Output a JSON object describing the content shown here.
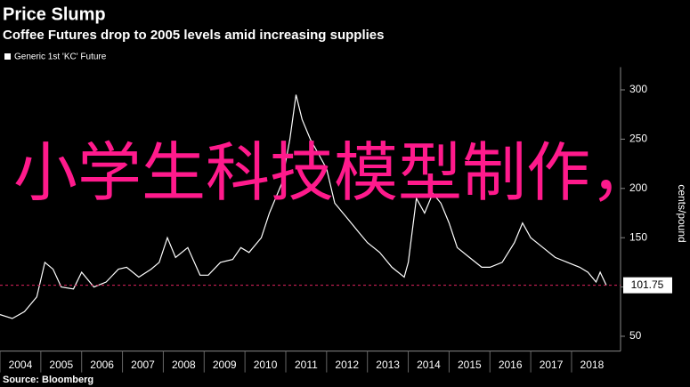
{
  "title": "Price Slump",
  "subtitle": "Coffee Futures drop to 2005 levels amid increasing supplies",
  "source": "Source: Bloomberg",
  "overlay_text": "小学生科技模型制作，",
  "chart_data": {
    "type": "line",
    "y_label": "cents/pound",
    "x": [
      2004.0,
      2004.3,
      2004.6,
      2004.9,
      2005.1,
      2005.3,
      2005.5,
      2005.8,
      2006.0,
      2006.3,
      2006.6,
      2006.9,
      2007.1,
      2007.4,
      2007.7,
      2007.9,
      2008.1,
      2008.3,
      2008.6,
      2008.9,
      2009.1,
      2009.4,
      2009.7,
      2009.9,
      2010.1,
      2010.4,
      2010.6,
      2010.9,
      2011.1,
      2011.25,
      2011.4,
      2011.6,
      2011.8,
      2012.0,
      2012.2,
      2012.5,
      2012.8,
      2013.0,
      2013.3,
      2013.6,
      2013.9,
      2014.0,
      2014.2,
      2014.4,
      2014.6,
      2014.8,
      2015.0,
      2015.2,
      2015.5,
      2015.8,
      2016.0,
      2016.3,
      2016.6,
      2016.8,
      2017.0,
      2017.3,
      2017.6,
      2017.9,
      2018.2,
      2018.4,
      2018.6,
      2018.7,
      2018.85
    ],
    "series": [
      {
        "name": "Generic 1st 'KC' Future",
        "color": "#ffffff",
        "values": [
          72,
          68,
          75,
          90,
          125,
          118,
          100,
          98,
          115,
          100,
          105,
          118,
          120,
          110,
          118,
          125,
          150,
          130,
          140,
          112,
          112,
          125,
          128,
          140,
          135,
          150,
          175,
          205,
          250,
          295,
          270,
          250,
          235,
          220,
          185,
          170,
          155,
          145,
          135,
          120,
          110,
          125,
          190,
          175,
          195,
          185,
          165,
          140,
          130,
          120,
          120,
          125,
          145,
          165,
          150,
          140,
          130,
          125,
          120,
          115,
          105,
          115,
          101.75
        ]
      }
    ],
    "xlim": [
      2004,
      2019.2
    ],
    "xticks": [
      2004,
      2005,
      2006,
      2007,
      2008,
      2009,
      2010,
      2011,
      2012,
      2013,
      2014,
      2015,
      2016,
      2017,
      2018
    ],
    "ylim": [
      35,
      314
    ],
    "yticks": [
      50,
      100,
      150,
      200,
      250,
      300
    ],
    "grid": false,
    "last_line_color": "#e0245e"
  }
}
